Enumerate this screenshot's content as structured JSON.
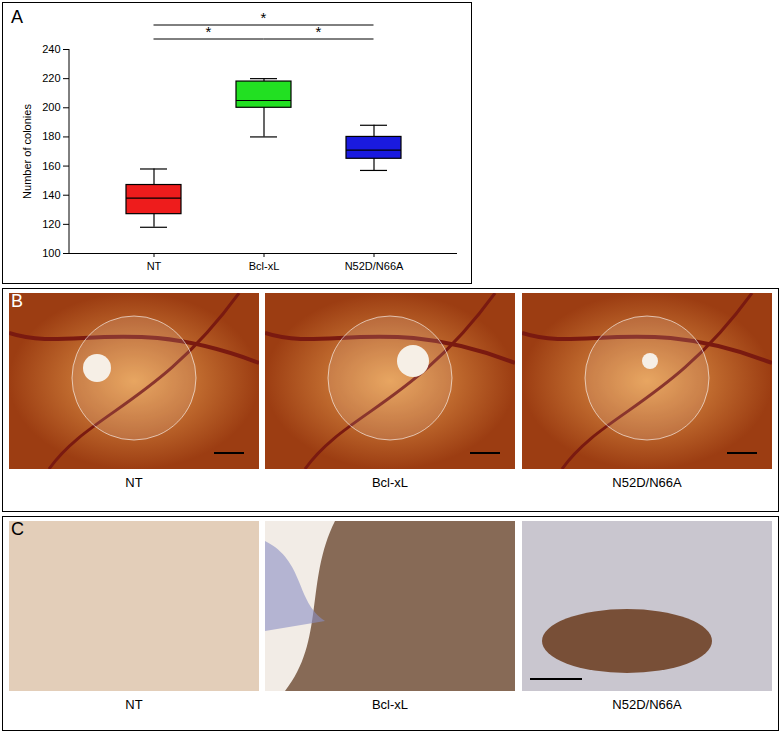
{
  "chart_data": {
    "type": "box",
    "panel": "A",
    "categories": [
      "NT",
      "Bcl-xL",
      "N52D/N66A"
    ],
    "colors": [
      "#ee1c1c",
      "#22e022",
      "#1a1adf"
    ],
    "min": [
      118,
      180,
      157
    ],
    "q1": [
      127,
      200,
      165
    ],
    "median": [
      138,
      205,
      171
    ],
    "q3": [
      147,
      218,
      180
    ],
    "max": [
      158,
      220,
      188
    ],
    "ylabel": "Number of colonies",
    "ylim": [
      100,
      240
    ],
    "yticks": [
      100,
      120,
      140,
      160,
      180,
      200,
      220,
      240
    ],
    "annotations": [
      {
        "from": "NT",
        "to": "N52D/N66A",
        "label": "*"
      },
      {
        "from": "NT",
        "to": "Bcl-xL",
        "label": "*"
      },
      {
        "from": "Bcl-xL",
        "to": "N52D/N66A",
        "label": "*"
      }
    ]
  },
  "image_panels": [
    {
      "panel": "B",
      "captions": [
        "NT",
        "Bcl-xL",
        "N52D/N66A"
      ]
    },
    {
      "panel": "C",
      "captions": [
        "NT",
        "Bcl-xL",
        "N52D/N66A"
      ]
    }
  ]
}
